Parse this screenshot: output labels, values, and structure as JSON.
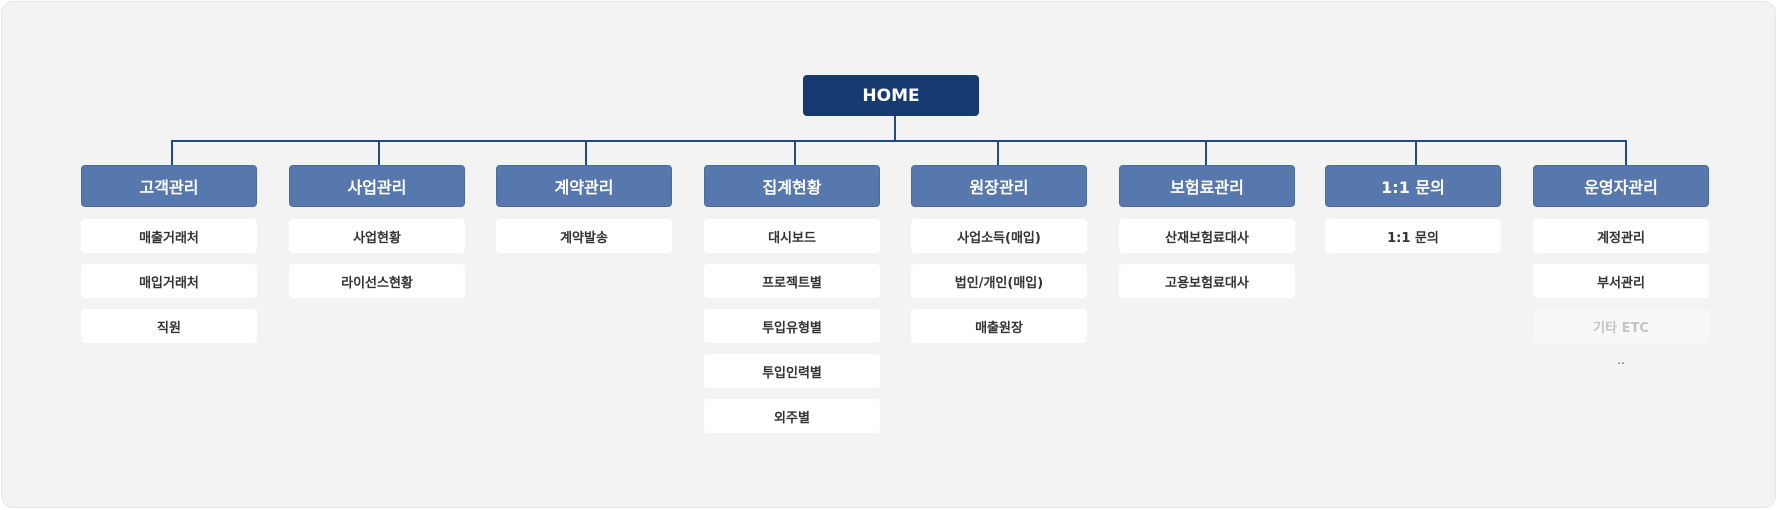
{
  "home": {
    "label": "HOME"
  },
  "categories": [
    {
      "title": "고객관리",
      "items": [
        "매출거래처",
        "매입거래처",
        "직원"
      ]
    },
    {
      "title": "사업관리",
      "items": [
        "사업현황",
        "라이선스현황"
      ]
    },
    {
      "title": "계약관리",
      "items": [
        "계약발송"
      ]
    },
    {
      "title": "집계현황",
      "items": [
        "대시보드",
        "프로젝트별",
        "투입유형별",
        "투입인력별",
        "외주별"
      ]
    },
    {
      "title": "원장관리",
      "items": [
        "사업소득(매입)",
        "법인/개인(매입)",
        "매출원장"
      ]
    },
    {
      "title": "보험료관리",
      "items": [
        "산재보험료대사",
        "고용보험료대사"
      ]
    },
    {
      "title": "1:1 문의",
      "items": [
        "1:1 문의"
      ]
    },
    {
      "title": "운영자관리",
      "items": [
        "계정관리",
        "부서관리",
        "기타 ETC"
      ],
      "disabled_item": "기타 ETC",
      "ellipsis": ".."
    }
  ],
  "colors": {
    "home_bg": "#173a70",
    "category_bg": "#5778ac",
    "connector": "#234a82",
    "item_bg": "#ffffff",
    "panel_bg": "#f3f3f3"
  }
}
